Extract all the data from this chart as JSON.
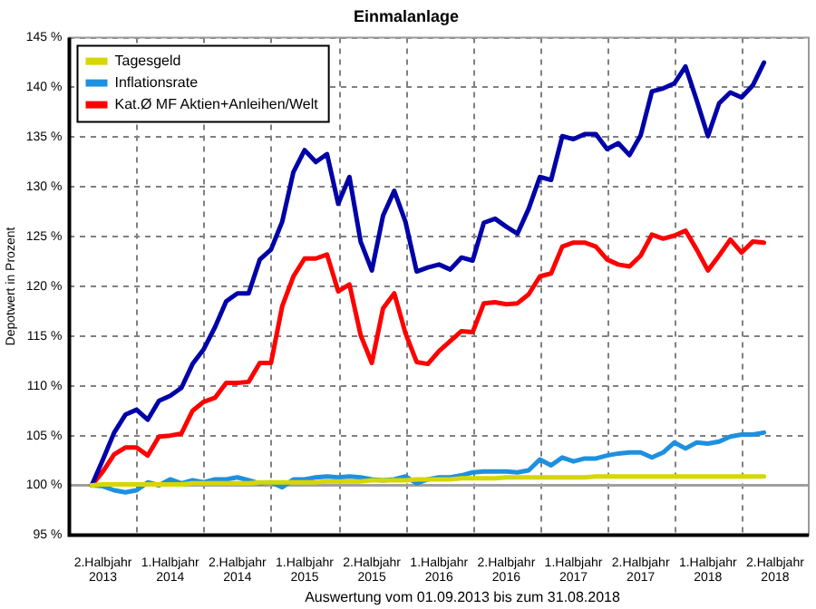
{
  "chart_data": {
    "type": "line",
    "title": "Einmalanlage",
    "ylabel": "Depotwert in Prozent",
    "annotations": [
      "Auswertung vom 01.09.2013 bis zum 31.08.2018"
    ],
    "categories": [
      null,
      null,
      null,
      "2.Halbjahr 2013",
      null,
      null,
      null,
      null,
      null,
      "1.Halbjahr 2014",
      null,
      null,
      null,
      null,
      null,
      "2.Halbjahr 2014",
      null,
      null,
      null,
      null,
      null,
      "1.Halbjahr 2015",
      null,
      null,
      null,
      null,
      null,
      "2.Halbjahr 2015",
      null,
      null,
      null,
      null,
      null,
      "1.Halbjahr 2016",
      null,
      null,
      null,
      null,
      null,
      "2.Halbjahr 2016",
      null,
      null,
      null,
      null,
      null,
      "1.Halbjahr 2017",
      null,
      null,
      null,
      null,
      null,
      "2.Halbjahr 2017",
      null,
      null,
      null,
      null,
      null,
      "1.Halbjahr 2018",
      null,
      null,
      null,
      null,
      null,
      "2.Halbjahr 2018",
      null,
      null,
      null
    ],
    "series": [
      {
        "name": "Tagesgeld",
        "color": "#d6d600",
        "values": [
          null,
          null,
          100,
          100.1,
          100.1,
          100.1,
          100.1,
          100.1,
          100.1,
          100.1,
          100.1,
          100.2,
          100.2,
          100.2,
          100.2,
          100.2,
          100.2,
          100.3,
          100.3,
          100.3,
          100.3,
          100.3,
          100.3,
          100.4,
          100.4,
          100.4,
          100.4,
          100.5,
          100.5,
          100.5,
          100.5,
          100.6,
          100.6,
          100.6,
          100.6,
          100.7,
          100.7,
          100.7,
          100.7,
          100.8,
          100.8,
          100.8,
          100.8,
          100.8,
          100.8,
          100.8,
          100.8,
          100.9,
          100.9,
          100.9,
          100.9,
          100.9,
          100.9,
          100.9,
          100.9,
          100.9,
          100.9,
          100.9,
          100.9,
          100.9,
          100.9,
          100.9,
          100.9,
          null,
          null,
          null,
          null
        ]
      },
      {
        "name": "Inflationsrate",
        "color": "#1e90e0",
        "values": [
          null,
          null,
          100,
          99.9,
          99.5,
          99.3,
          99.5,
          100.3,
          100,
          100.6,
          100.2,
          100.5,
          100.3,
          100.6,
          100.6,
          100.8,
          100.5,
          100.2,
          100.3,
          99.8,
          100.6,
          100.6,
          100.8,
          100.9,
          100.8,
          100.9,
          100.8,
          100.6,
          100.5,
          100.6,
          100.9,
          100.2,
          100.6,
          100.8,
          100.8,
          101,
          101.3,
          101.4,
          101.4,
          101.4,
          101.3,
          101.5,
          102.6,
          102,
          102.8,
          102.4,
          102.7,
          102.7,
          103,
          103.2,
          103.3,
          103.3,
          102.8,
          103.3,
          104.3,
          103.7,
          104.3,
          104.2,
          104.4,
          104.9,
          105.1,
          105.1,
          105.3,
          null,
          null,
          null,
          null
        ]
      },
      {
        "color": "#0000a8",
        "values": [
          null,
          null,
          100,
          102.6,
          105.3,
          107.1,
          107.6,
          106.6,
          108.5,
          109,
          109.8,
          112.2,
          113.7,
          115.9,
          118.5,
          119.3,
          119.3,
          122.7,
          123.7,
          126.5,
          131.5,
          133.7,
          132.5,
          133.3,
          128.3,
          131,
          124.5,
          121.6,
          127.1,
          129.6,
          126.5,
          121.5,
          121.9,
          122.2,
          121.7,
          122.9,
          122.6,
          126.4,
          126.8,
          126,
          125.3,
          127.8,
          131,
          130.7,
          135.1,
          134.8,
          135.3,
          135.3,
          133.8,
          134.4,
          133.2,
          135.2,
          139.6,
          139.9,
          140.4,
          142.1,
          138.7,
          135.1,
          138.4,
          139.5,
          139,
          140.2,
          142.5,
          null,
          null,
          null,
          null
        ]
      },
      {
        "name": "Kat.Ø MF Aktien+Anleihen/Welt",
        "color": "#ff0000",
        "values": [
          null,
          null,
          100,
          101.4,
          103.1,
          103.8,
          103.8,
          103,
          104.9,
          105,
          105.2,
          107.5,
          108.4,
          108.8,
          110.3,
          110.3,
          110.4,
          112.3,
          112.3,
          118,
          121,
          122.8,
          122.8,
          123.2,
          119.5,
          120.2,
          115.1,
          112.3,
          117.8,
          119.3,
          115.3,
          112.4,
          112.2,
          113.5,
          114.5,
          115.5,
          115.4,
          118.3,
          118.4,
          118.2,
          118.3,
          119.2,
          121,
          121.3,
          124,
          124.4,
          124.4,
          124,
          122.7,
          122.2,
          122,
          123.1,
          125.2,
          124.8,
          125.1,
          125.6,
          123.7,
          121.6,
          123.1,
          124.7,
          123.4,
          124.5,
          124.4,
          null,
          null,
          null,
          null
        ]
      }
    ],
    "ylim": [
      95,
      145
    ],
    "yticks": [
      {
        "value": 95,
        "label": "95 %"
      },
      {
        "value": 100,
        "label": "100 %"
      },
      {
        "value": 105,
        "label": "105 %"
      },
      {
        "value": 110,
        "label": "110 %"
      },
      {
        "value": 115,
        "label": "115 %"
      },
      {
        "value": 120,
        "label": "120 %"
      },
      {
        "value": 125,
        "label": "125 %"
      },
      {
        "value": 130,
        "label": "130 %"
      },
      {
        "value": 135,
        "label": "135 %"
      },
      {
        "value": 140,
        "label": "140 %"
      },
      {
        "value": 145,
        "label": "145 %"
      }
    ],
    "ref_lines": [
      {
        "axis": "y",
        "value": 100,
        "color": "#a0a0a0"
      }
    ],
    "grid": true,
    "legend": "top left",
    "marker": "none",
    "line_style": "solid"
  }
}
